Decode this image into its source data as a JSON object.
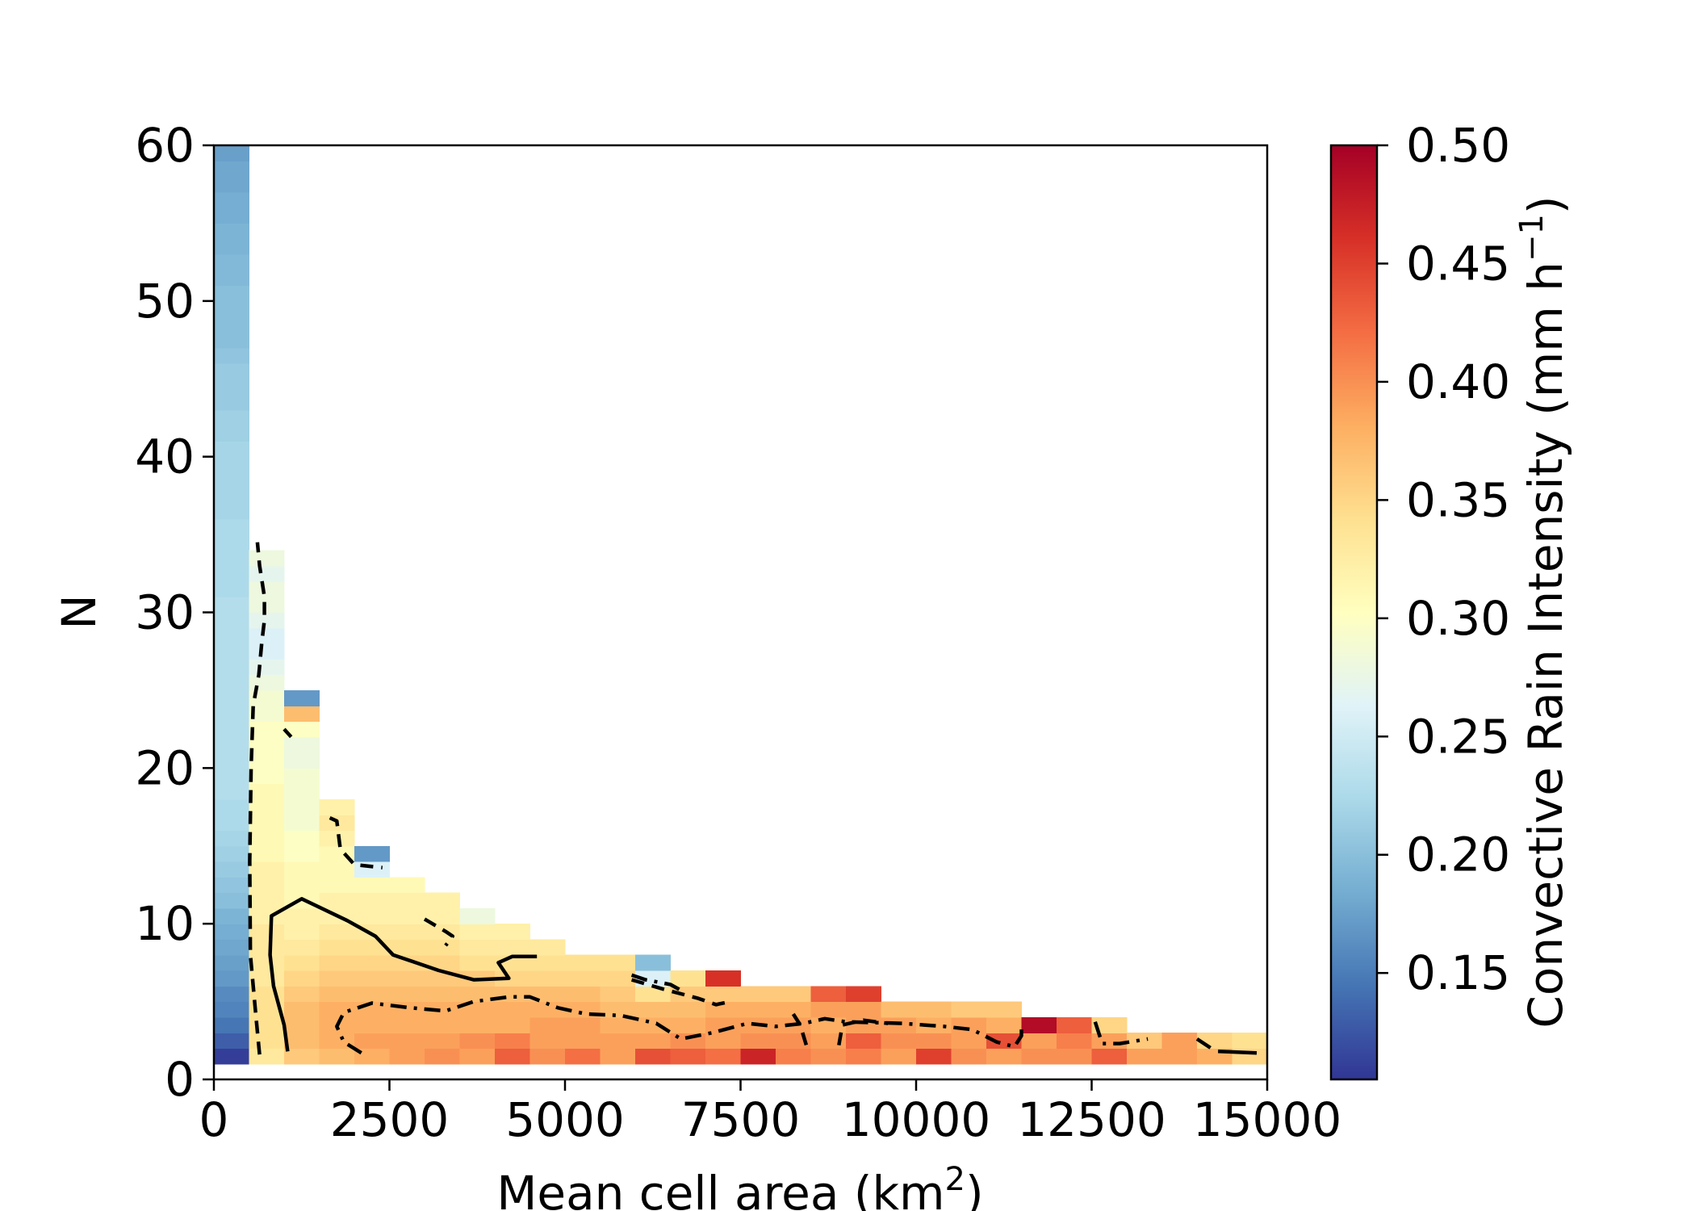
{
  "chart_data": {
    "type": "heatmap",
    "xlabel": "Mean cell area (km",
    "xlabel_sup": "2",
    "xlabel_end": ")",
    "ylabel": "N",
    "colorbar_label": "Convective Rain Intensity (mm h",
    "colorbar_label_sup": "−1",
    "colorbar_label_end": ")",
    "colormap": "RdYlBu_r",
    "colormap_stops": [
      "#313695",
      "#4575b4",
      "#74add1",
      "#abd9e9",
      "#e0f3f8",
      "#ffffbf",
      "#fee090",
      "#fdae61",
      "#f46d43",
      "#d73027",
      "#a50026"
    ],
    "xlim": [
      0,
      15000
    ],
    "ylim": [
      0,
      60
    ],
    "clim": [
      0.105,
      0.5
    ],
    "x_ticks": [
      0,
      2500,
      5000,
      7500,
      10000,
      12500,
      15000
    ],
    "x_tick_labels": [
      "0",
      "2500",
      "5000",
      "7500",
      "10000",
      "12500",
      "15000"
    ],
    "y_ticks": [
      0,
      10,
      20,
      30,
      40,
      50,
      60
    ],
    "y_tick_labels": [
      "0",
      "10",
      "20",
      "30",
      "40",
      "50",
      "60"
    ],
    "colorbar_ticks": [
      0.15,
      0.2,
      0.25,
      0.3,
      0.35,
      0.4,
      0.45,
      0.5
    ],
    "colorbar_tick_labels": [
      "0.15",
      "0.20",
      "0.25",
      "0.30",
      "0.35",
      "0.40",
      "0.45",
      "0.50"
    ],
    "x_bin_width": 500,
    "y_bin_height": 1,
    "columns": [
      {
        "x0": 0,
        "y_start": 1,
        "values": [
          0.11,
          0.13,
          0.145,
          0.155,
          0.16,
          0.17,
          0.175,
          0.18,
          0.185,
          0.19,
          0.2,
          0.205,
          0.21,
          0.215,
          0.22,
          0.225,
          0.225,
          0.23,
          0.23,
          0.23,
          0.23,
          0.23,
          0.23,
          0.23,
          0.23,
          0.23,
          0.23,
          0.23,
          0.23,
          0.23,
          0.225,
          0.225,
          0.225,
          0.225,
          0.225,
          0.22,
          0.22,
          0.22,
          0.22,
          0.22,
          0.215,
          0.215,
          0.21,
          0.21,
          0.21,
          0.205,
          0.2,
          0.2,
          0.2,
          0.2,
          0.195,
          0.195,
          0.19,
          0.19,
          0.185,
          0.185,
          0.18,
          0.18,
          0.175
        ]
      },
      {
        "x0": 500,
        "y_start": 1,
        "values": [
          0.33,
          0.34,
          0.34,
          0.34,
          0.34,
          0.33,
          0.33,
          0.33,
          0.33,
          0.32,
          0.32,
          0.32,
          0.32,
          0.31,
          0.31,
          0.31,
          0.31,
          0.31,
          0.3,
          0.3,
          0.3,
          0.3,
          0.29,
          0.29,
          0.28,
          0.27,
          0.26,
          0.26,
          0.27,
          0.28,
          0.28,
          0.27,
          0.28
        ]
      },
      {
        "x0": 1000,
        "y_start": 1,
        "values": [
          0.36,
          0.37,
          0.37,
          0.37,
          0.36,
          0.35,
          0.34,
          0.33,
          0.32,
          0.32,
          0.31,
          0.31,
          0.31,
          0.3,
          0.3,
          0.29,
          0.29,
          0.29,
          0.29,
          0.28,
          0.28,
          0.3,
          0.37,
          0.17
        ]
      },
      {
        "x0": 1500,
        "y_start": 1,
        "values": [
          0.37,
          0.38,
          0.38,
          0.38,
          0.37,
          0.36,
          0.35,
          0.34,
          0.33,
          0.32,
          0.32,
          0.31,
          0.31,
          0.31,
          0.32,
          0.33,
          0.32
        ]
      },
      {
        "x0": 2000,
        "y_start": 1,
        "values": [
          0.38,
          0.39,
          0.38,
          0.38,
          0.37,
          0.36,
          0.35,
          0.34,
          0.33,
          0.32,
          0.32,
          0.31,
          0.26,
          0.17
        ]
      },
      {
        "x0": 2500,
        "y_start": 1,
        "values": [
          0.39,
          0.39,
          0.38,
          0.38,
          0.37,
          0.36,
          0.35,
          0.34,
          0.33,
          0.32,
          0.32,
          0.31
        ]
      },
      {
        "x0": 3000,
        "y_start": 1,
        "values": [
          0.4,
          0.39,
          0.38,
          0.38,
          0.37,
          0.36,
          0.35,
          0.34,
          0.33,
          0.32,
          0.32
        ]
      },
      {
        "x0": 3500,
        "y_start": 1,
        "values": [
          0.39,
          0.4,
          0.38,
          0.38,
          0.37,
          0.36,
          0.34,
          0.33,
          0.32,
          0.28
        ]
      },
      {
        "x0": 4000,
        "y_start": 1,
        "values": [
          0.43,
          0.41,
          0.38,
          0.38,
          0.37,
          0.35,
          0.34,
          0.33,
          0.32
        ]
      },
      {
        "x0": 4500,
        "y_start": 1,
        "values": [
          0.4,
          0.39,
          0.39,
          0.38,
          0.37,
          0.35,
          0.34,
          0.33
        ]
      },
      {
        "x0": 5000,
        "y_start": 1,
        "values": [
          0.42,
          0.39,
          0.39,
          0.38,
          0.37,
          0.35,
          0.34
        ]
      },
      {
        "x0": 5500,
        "y_start": 1,
        "values": [
          0.39,
          0.39,
          0.38,
          0.37,
          0.36,
          0.35,
          0.34
        ]
      },
      {
        "x0": 6000,
        "y_start": 1,
        "values": [
          0.44,
          0.39,
          0.38,
          0.37,
          0.34,
          0.26,
          0.2
        ]
      },
      {
        "x0": 6500,
        "y_start": 1,
        "values": [
          0.43,
          0.4,
          0.38,
          0.37,
          0.36,
          0.34
        ]
      },
      {
        "x0": 7000,
        "y_start": 1,
        "values": [
          0.42,
          0.39,
          0.39,
          0.38,
          0.36,
          0.46
        ]
      },
      {
        "x0": 7500,
        "y_start": 1,
        "values": [
          0.47,
          0.4,
          0.39,
          0.38,
          0.36
        ]
      },
      {
        "x0": 8000,
        "y_start": 1,
        "values": [
          0.41,
          0.4,
          0.39,
          0.38,
          0.36
        ]
      },
      {
        "x0": 8500,
        "y_start": 1,
        "values": [
          0.4,
          0.39,
          0.38,
          0.39,
          0.43
        ]
      },
      {
        "x0": 9000,
        "y_start": 1,
        "values": [
          0.41,
          0.43,
          0.39,
          0.39,
          0.45
        ]
      },
      {
        "x0": 9500,
        "y_start": 1,
        "values": [
          0.39,
          0.4,
          0.39,
          0.37
        ]
      },
      {
        "x0": 10000,
        "y_start": 1,
        "values": [
          0.45,
          0.4,
          0.38,
          0.37
        ]
      },
      {
        "x0": 10500,
        "y_start": 1,
        "values": [
          0.4,
          0.39,
          0.39,
          0.36
        ]
      },
      {
        "x0": 11000,
        "y_start": 1,
        "values": [
          0.39,
          0.44,
          0.38,
          0.36
        ]
      },
      {
        "x0": 11500,
        "y_start": 1,
        "values": [
          0.4,
          0.39,
          0.49
        ]
      },
      {
        "x0": 12000,
        "y_start": 1,
        "values": [
          0.4,
          0.41,
          0.43
        ]
      },
      {
        "x0": 12500,
        "y_start": 1,
        "values": [
          0.43,
          0.39,
          0.35
        ]
      },
      {
        "x0": 13000,
        "y_start": 1,
        "values": [
          0.39,
          0.36
        ]
      },
      {
        "x0": 13500,
        "y_start": 1,
        "values": [
          0.39,
          0.39
        ]
      },
      {
        "x0": 14000,
        "y_start": 1,
        "values": [
          0.38,
          0.35
        ]
      },
      {
        "x0": 14500,
        "y_start": 1,
        "values": [
          0.35,
          0.34
        ]
      }
    ],
    "contours": [
      {
        "style": "solid",
        "points": [
          [
            1050,
            1.8
          ],
          [
            1000,
            3.5
          ],
          [
            850,
            6
          ],
          [
            800,
            8
          ],
          [
            820,
            10.5
          ],
          [
            1250,
            11.6
          ],
          [
            1900,
            10.2
          ],
          [
            2300,
            9.2
          ],
          [
            2550,
            8
          ],
          [
            3200,
            7
          ],
          [
            3700,
            6.4
          ],
          [
            4200,
            6.5
          ],
          [
            4050,
            7.5
          ],
          [
            4250,
            7.9
          ],
          [
            4600,
            7.9
          ]
        ]
      },
      {
        "style": "dashed",
        "points": [
          [
            650,
            1.6
          ],
          [
            600,
            4
          ],
          [
            520,
            8
          ],
          [
            510,
            14
          ],
          [
            530,
            20
          ],
          [
            560,
            24
          ],
          [
            640,
            26
          ],
          [
            680,
            28
          ],
          [
            720,
            29.5
          ],
          [
            720,
            31
          ],
          [
            650,
            33
          ],
          [
            620,
            34.5
          ]
        ]
      },
      {
        "style": "dashed",
        "points": [
          [
            1000,
            22.5
          ],
          [
            1100,
            22
          ]
        ]
      },
      {
        "style": "dashed",
        "points": [
          [
            1650,
            16.8
          ],
          [
            1750,
            16.6
          ],
          [
            1800,
            14.8
          ],
          [
            2000,
            13.8
          ],
          [
            2400,
            13.6
          ]
        ]
      },
      {
        "style": "dashed",
        "points": [
          [
            3000,
            10.3
          ],
          [
            3300,
            9.5
          ],
          [
            3400,
            9.2
          ],
          [
            3300,
            8.6
          ]
        ]
      },
      {
        "style": "dashed",
        "points": [
          [
            5950,
            6.4
          ],
          [
            6400,
            5.8
          ],
          [
            6900,
            5.2
          ],
          [
            7150,
            4.8
          ],
          [
            7350,
            5
          ]
        ]
      },
      {
        "style": "dashed",
        "points": [
          [
            8250,
            4.2
          ],
          [
            8350,
            3.5
          ],
          [
            8450,
            2
          ]
        ]
      },
      {
        "style": "dashed",
        "points": [
          [
            8900,
            2.2
          ],
          [
            8950,
            3.5
          ],
          [
            9250,
            3.8
          ],
          [
            9600,
            3.6
          ]
        ]
      },
      {
        "style": "dashdot",
        "points": [
          [
            2100,
            1.7
          ],
          [
            1850,
            2.4
          ],
          [
            1750,
            3.4
          ],
          [
            1850,
            4.3
          ],
          [
            2250,
            4.9
          ],
          [
            2800,
            4.6
          ],
          [
            3300,
            4.4
          ],
          [
            3700,
            5
          ],
          [
            4200,
            5.3
          ],
          [
            4500,
            5.3
          ],
          [
            4900,
            4.6
          ],
          [
            5300,
            4.2
          ],
          [
            5800,
            4.1
          ],
          [
            6300,
            3.6
          ],
          [
            6650,
            2.6
          ],
          [
            7100,
            3
          ],
          [
            7600,
            3.6
          ],
          [
            8000,
            3.4
          ],
          [
            8400,
            3.6
          ],
          [
            8700,
            3.9
          ],
          [
            9000,
            3.7
          ],
          [
            9800,
            3.6
          ],
          [
            10400,
            3.4
          ],
          [
            10800,
            3.2
          ],
          [
            11150,
            2.4
          ],
          [
            11400,
            2.1
          ],
          [
            11500,
            2.8
          ],
          [
            11500,
            3.5
          ]
        ]
      },
      {
        "style": "dashdot",
        "points": [
          [
            5950,
            6.7
          ],
          [
            6150,
            6.4
          ],
          [
            6500,
            6.1
          ],
          [
            6700,
            5.6
          ]
        ]
      },
      {
        "style": "dashdot",
        "points": [
          [
            12550,
            3.7
          ],
          [
            12650,
            2.3
          ],
          [
            12900,
            2.3
          ],
          [
            13300,
            2.6
          ]
        ]
      },
      {
        "style": "dashdot",
        "points": [
          [
            14000,
            2.6
          ],
          [
            14200,
            2
          ]
        ]
      },
      {
        "style": "solid",
        "points": [
          [
            14300,
            1.8
          ],
          [
            14850,
            1.7
          ]
        ]
      }
    ]
  }
}
